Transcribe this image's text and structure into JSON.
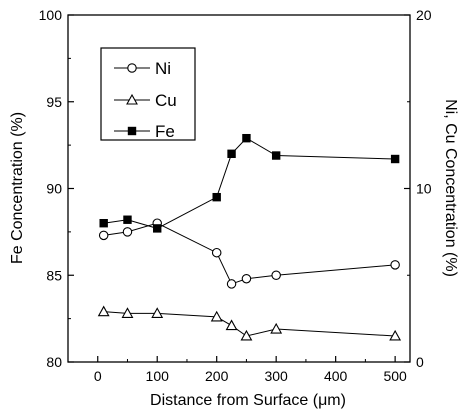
{
  "chart_data": {
    "type": "line",
    "title": "",
    "xlabel": "Distance from Surface (μm)",
    "ylabel": "Fe Concentration (%)",
    "y2label": "Ni, Cu Concentration (%)",
    "xlim": [
      -50,
      525
    ],
    "ylim": [
      80,
      100
    ],
    "y2lim": [
      0,
      20
    ],
    "xticks": [
      "0",
      "100",
      "200",
      "300",
      "400",
      "500"
    ],
    "yticks": [
      "80",
      "85",
      "90",
      "95",
      "100"
    ],
    "y2ticks": [
      "0",
      "10",
      "20"
    ],
    "grid": false,
    "legend_position": "top-left",
    "series": [
      {
        "name": "Ni",
        "axis": "right",
        "marker": "open-circle",
        "x": [
          10,
          50,
          100,
          200,
          225,
          250,
          300,
          500
        ],
        "values": [
          7.3,
          7.5,
          8.0,
          6.3,
          4.5,
          4.8,
          5.0,
          5.6
        ]
      },
      {
        "name": "Cu",
        "axis": "right",
        "marker": "open-triangle",
        "x": [
          10,
          50,
          100,
          200,
          225,
          250,
          300,
          500
        ],
        "values": [
          2.9,
          2.8,
          2.8,
          2.6,
          2.1,
          1.5,
          1.9,
          1.5
        ]
      },
      {
        "name": "Fe",
        "axis": "left",
        "marker": "filled-square",
        "x": [
          10,
          50,
          100,
          200,
          225,
          250,
          300,
          500
        ],
        "values": [
          88.0,
          88.2,
          87.7,
          89.5,
          92.0,
          92.9,
          91.9,
          91.7
        ]
      }
    ]
  }
}
